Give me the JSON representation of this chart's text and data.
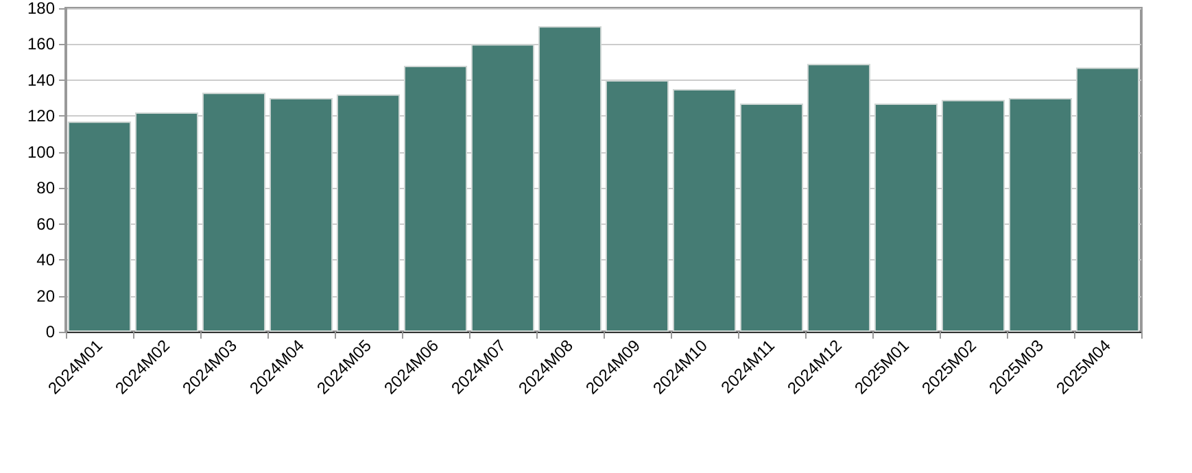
{
  "chart_data": {
    "type": "bar",
    "categories": [
      "2024M01",
      "2024M02",
      "2024M03",
      "2024M04",
      "2024M05",
      "2024M06",
      "2024M07",
      "2024M08",
      "2024M09",
      "2024M10",
      "2024M11",
      "2024M12",
      "2025M01",
      "2025M02",
      "2025M03",
      "2025M04"
    ],
    "values": [
      117,
      122,
      133,
      130,
      132,
      148,
      160,
      170,
      140,
      135,
      127,
      149,
      127,
      129,
      130,
      147
    ],
    "color": "#457c74",
    "ylim": [
      0,
      180
    ],
    "yticks": [
      0,
      20,
      40,
      60,
      80,
      100,
      120,
      140,
      160,
      180
    ],
    "grid": "y"
  }
}
